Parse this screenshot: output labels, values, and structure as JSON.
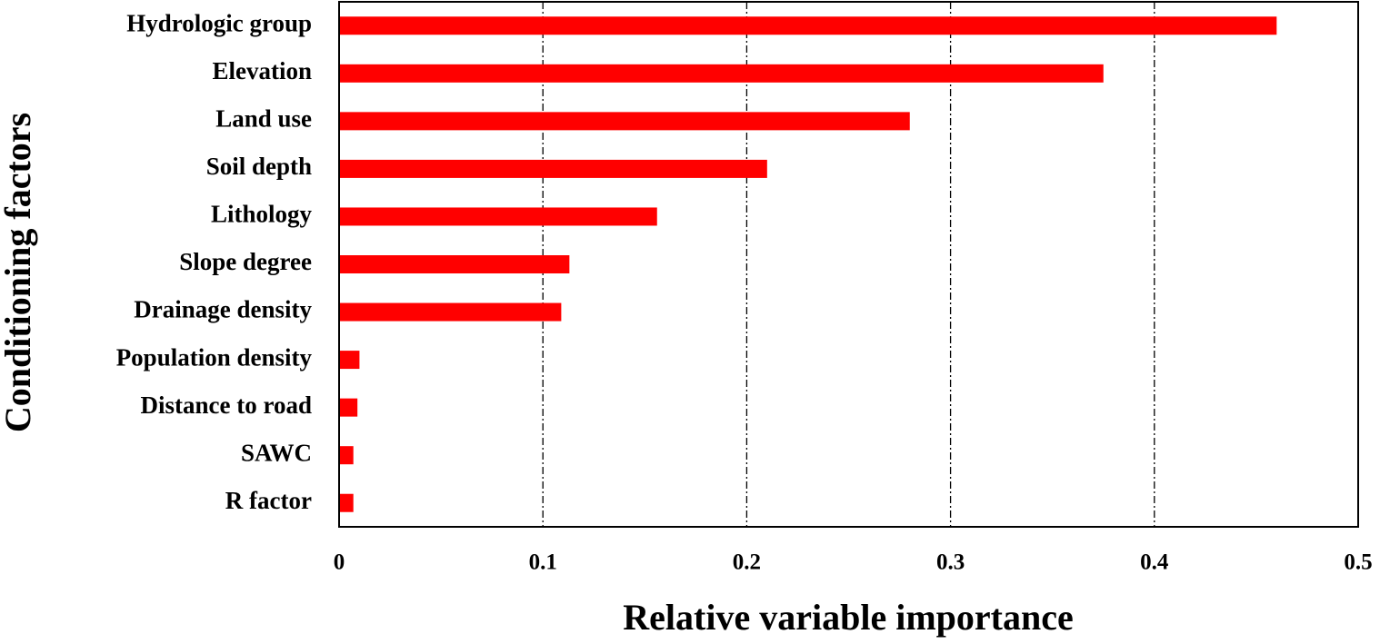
{
  "chart_data": {
    "type": "barh",
    "xlabel": "Relative variable importance",
    "ylabel": "Conditioning factors",
    "categories": [
      "Hydrologic group",
      "Elevation",
      "Land use",
      "Soil depth",
      "Lithology",
      "Slope degree",
      "Drainage density",
      "Population density",
      "Distance to road",
      "SAWC",
      "R factor"
    ],
    "values": [
      0.46,
      0.375,
      0.28,
      0.21,
      0.156,
      0.113,
      0.109,
      0.01,
      0.009,
      0.007,
      0.007
    ],
    "color": "#ff0000",
    "xlim": [
      0,
      0.5
    ],
    "xticks": [
      0,
      0.1,
      0.2,
      0.3,
      0.4,
      0.5
    ],
    "grid": true
  }
}
